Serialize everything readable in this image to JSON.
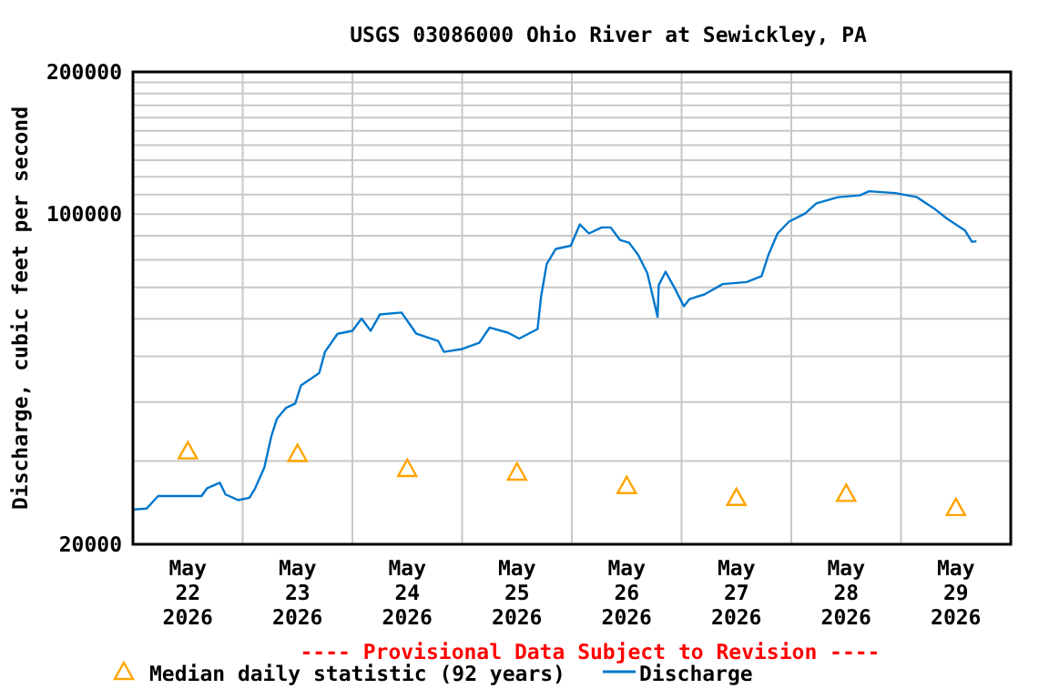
{
  "chart_data": {
    "type": "line",
    "title": "USGS 03086000 Ohio River at Sewickley, PA",
    "ylabel": "Discharge, cubic feet per second",
    "log": "y",
    "grid": true,
    "legend": "bottom",
    "annotations": [
      "---- Provisional Data Subject to Revision ----"
    ],
    "xlim": [
      "2026-05-22T00:00",
      "2026-05-30T00:00"
    ],
    "xticks": [
      {
        "value": "2026-05-22T12:00",
        "label": "May\n22\n2026"
      },
      {
        "value": "2026-05-23T12:00",
        "label": "May\n23\n2026"
      },
      {
        "value": "2026-05-24T12:00",
        "label": "May\n24\n2026"
      },
      {
        "value": "2026-05-25T12:00",
        "label": "May\n25\n2026"
      },
      {
        "value": "2026-05-26T12:00",
        "label": "May\n26\n2026"
      },
      {
        "value": "2026-05-27T12:00",
        "label": "May\n27\n2026"
      },
      {
        "value": "2026-05-28T12:00",
        "label": "May\n28\n2026"
      },
      {
        "value": "2026-05-29T12:00",
        "label": "May\n29\n2026"
      },
      {
        "value": "2026-05-23T00:00",
        "label": null
      },
      {
        "value": "2026-05-24T00:00",
        "label": null
      },
      {
        "value": "2026-05-25T00:00",
        "label": null
      },
      {
        "value": "2026-05-26T00:00",
        "label": null
      },
      {
        "value": "2026-05-27T00:00",
        "label": null
      },
      {
        "value": "2026-05-28T00:00",
        "label": null
      },
      {
        "value": "2026-05-29T00:00",
        "label": null
      }
    ],
    "ylim": [
      20000,
      200000
    ],
    "yticks": [
      20000,
      {
        "value": 30000,
        "label": null
      },
      {
        "value": 40000,
        "label": null
      },
      {
        "value": 50000,
        "label": null
      },
      {
        "value": 60000,
        "label": null
      },
      {
        "value": 70000,
        "label": null
      },
      {
        "value": 80000,
        "label": null
      },
      {
        "value": 90000,
        "label": null
      },
      100000,
      {
        "value": 110000,
        "label": null
      },
      {
        "value": 120000,
        "label": null
      },
      {
        "value": 130000,
        "label": null
      },
      {
        "value": 140000,
        "label": null
      },
      {
        "value": 150000,
        "label": null
      },
      {
        "value": 160000,
        "label": null
      },
      {
        "value": 170000,
        "label": null
      },
      {
        "value": 180000,
        "label": null
      },
      {
        "value": 190000,
        "label": null
      },
      200000
    ],
    "series": [
      {
        "name": "Median daily statistic (92 years)",
        "type": "scatter",
        "marker": "triangle",
        "color": "#ffa500",
        "x": [
          "2026-05-22T12:00",
          "2026-05-23T12:00",
          "2026-05-24T12:00",
          "2026-05-25T12:00",
          "2026-05-26T12:00",
          "2026-05-27T12:00",
          "2026-05-28T12:00",
          "2026-05-29T12:00"
        ],
        "values": [
          31500,
          31100,
          28900,
          28400,
          26600,
          25100,
          25600,
          23900
        ]
      },
      {
        "name": "Discharge",
        "color": "#0077cc",
        "x": [
          "2026-05-22T00:15",
          "2026-05-22T03:00",
          "2026-05-22T05:30",
          "2026-05-22T15:00",
          "2026-05-22T16:15",
          "2026-05-22T19:00",
          "2026-05-22T20:15",
          "2026-05-22T23:00",
          "2026-05-23T01:30",
          "2026-05-23T02:45",
          "2026-05-23T04:45",
          "2026-05-23T06:15",
          "2026-05-23T07:30",
          "2026-05-23T09:30",
          "2026-05-23T11:30",
          "2026-05-23T12:45",
          "2026-05-23T14:45",
          "2026-05-23T16:45",
          "2026-05-23T18:00",
          "2026-05-23T20:45",
          "2026-05-24T00:00",
          "2026-05-24T02:00",
          "2026-05-24T04:00",
          "2026-05-24T06:00",
          "2026-05-24T10:45",
          "2026-05-24T14:00",
          "2026-05-24T18:45",
          "2026-05-24T20:00",
          "2026-05-25T00:00",
          "2026-05-25T03:45",
          "2026-05-25T06:00",
          "2026-05-25T10:00",
          "2026-05-25T12:30",
          "2026-05-25T16:30",
          "2026-05-25T17:15",
          "2026-05-25T18:30",
          "2026-05-25T20:30",
          "2026-05-25T23:45",
          "2026-05-26T01:45",
          "2026-05-26T03:45",
          "2026-05-26T06:30",
          "2026-05-26T08:30",
          "2026-05-26T10:30",
          "2026-05-26T12:30",
          "2026-05-26T14:30",
          "2026-05-26T16:30",
          "2026-05-26T17:45",
          "2026-05-26T18:45",
          "2026-05-26T19:00",
          "2026-05-26T20:30",
          "2026-05-26T22:30",
          "2026-05-27T00:30",
          "2026-05-27T01:45",
          "2026-05-27T05:00",
          "2026-05-27T09:00",
          "2026-05-27T14:15",
          "2026-05-27T17:30",
          "2026-05-27T19:00",
          "2026-05-27T21:00",
          "2026-05-27T23:30",
          "2026-05-28T03:00",
          "2026-05-28T05:30",
          "2026-05-28T10:15",
          "2026-05-28T15:00",
          "2026-05-28T17:00",
          "2026-05-28T22:45",
          "2026-05-29T03:30",
          "2026-05-29T07:30",
          "2026-05-29T10:00",
          "2026-05-29T14:00",
          "2026-05-29T15:30",
          "2026-05-29T16:30"
        ],
        "values": [
          23700,
          23800,
          25300,
          25300,
          26300,
          27000,
          25500,
          24800,
          25100,
          26300,
          29100,
          33800,
          36900,
          38900,
          39700,
          43400,
          44700,
          46100,
          51100,
          55800,
          56600,
          60100,
          56600,
          61300,
          61900,
          55800,
          53900,
          51100,
          51800,
          53400,
          57500,
          56100,
          54500,
          57100,
          66700,
          78400,
          84400,
          85700,
          95100,
          91000,
          93700,
          93700,
          88200,
          87000,
          82000,
          75000,
          66700,
          60600,
          70700,
          75500,
          69700,
          63800,
          66100,
          67600,
          71100,
          71800,
          73900,
          82000,
          91000,
          96400,
          100300,
          105400,
          108600,
          109600,
          111800,
          110800,
          108600,
          102300,
          97900,
          92300,
          87400,
          87600
        ]
      }
    ]
  }
}
